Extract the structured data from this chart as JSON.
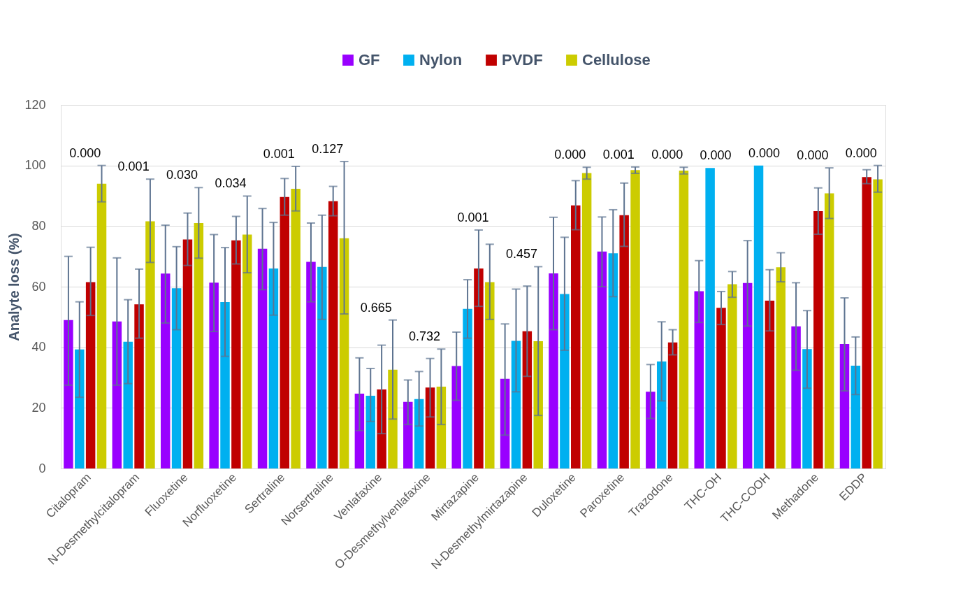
{
  "chart_data": {
    "type": "bar",
    "ylabel": "Analyte loss (%)",
    "legend": "top",
    "grid": "y",
    "categories": [
      "Citalopram",
      "N-Desmethylcitalopram",
      "Fluoxetine",
      "Norfluoxetine",
      "Sertraline",
      "Norsertraline",
      "Venlafaxine",
      "O-Desmethylvenlafaxine",
      "Mirtazapine",
      "N-Desmethylmirtazapine",
      "Duloxetine",
      "Paroxetine",
      "Trazodone",
      "THC-OH",
      "THC-COOH",
      "Methadone",
      "EDDP"
    ],
    "ylim": [
      0,
      120
    ],
    "yticks": [
      0,
      20,
      40,
      60,
      80,
      100,
      120
    ],
    "series": [
      {
        "name": "GF",
        "color": "#9900ff",
        "values": [
          49,
          48.5,
          64.3,
          61.3,
          72.5,
          68.2,
          24.7,
          22,
          33.8,
          29.6,
          64.4,
          71.6,
          25.3,
          58.5,
          61.2,
          46.9,
          41.1
        ],
        "errors": [
          [
            27.5,
            70
          ],
          [
            27.5,
            69.5
          ],
          [
            48,
            80.3
          ],
          [
            45.2,
            77.2
          ],
          [
            59,
            85.8
          ],
          [
            55,
            81
          ],
          [
            12.5,
            36.5
          ],
          [
            14.5,
            29.2
          ],
          [
            22.5,
            45
          ],
          [
            11,
            47.7
          ],
          [
            45.8,
            82.9
          ],
          [
            60,
            83
          ],
          [
            16.5,
            34.3
          ],
          [
            48.2,
            68.6
          ],
          [
            47,
            75.2
          ],
          [
            32.4,
            61.3
          ],
          [
            25.6,
            56.3
          ]
        ]
      },
      {
        "name": "Nylon",
        "color": "#00b0f0",
        "values": [
          39.3,
          41.8,
          59.5,
          54.9,
          66,
          66.5,
          24,
          22.9,
          52.7,
          42.1,
          57.6,
          71,
          35.3,
          99.2,
          100,
          39.4,
          33.9
        ],
        "errors": [
          [
            23.5,
            55
          ],
          [
            28,
            55.7
          ],
          [
            45.8,
            73.2
          ],
          [
            37,
            72.9
          ],
          [
            50.6,
            81.2
          ],
          [
            49.2,
            83.6
          ],
          [
            15.5,
            33
          ],
          [
            14,
            32
          ],
          [
            43,
            62.3
          ],
          [
            25.3,
            59.2
          ],
          [
            39,
            76.3
          ],
          [
            56.7,
            85.4
          ],
          [
            22.3,
            48.4
          ],
          null,
          null,
          [
            26.5,
            52.1
          ],
          [
            24.4,
            43.4
          ]
        ]
      },
      {
        "name": "PVDF",
        "color": "#c00000",
        "values": [
          61.5,
          54.2,
          75.6,
          75.3,
          89.6,
          88.2,
          26.1,
          26.7,
          66,
          45.3,
          86.8,
          83.6,
          41.6,
          53,
          55.4,
          84.9,
          96.2
        ],
        "errors": [
          [
            50.5,
            73
          ],
          [
            43,
            65.8
          ],
          [
            67,
            84.3
          ],
          [
            67.5,
            83.2
          ],
          [
            83.6,
            95.7
          ],
          [
            83.4,
            93.1
          ],
          [
            11.5,
            40.7
          ],
          [
            17,
            36.3
          ],
          [
            53.5,
            78.7
          ],
          [
            30.4,
            60.2
          ],
          [
            78.8,
            95
          ],
          [
            73.3,
            94.2
          ],
          [
            37.5,
            45.8
          ],
          [
            47.5,
            58.4
          ],
          [
            45.4,
            65.6
          ],
          [
            77.3,
            92.6
          ],
          [
            94,
            98.6
          ]
        ]
      },
      {
        "name": "Cellulose",
        "color": "#cccc00",
        "values": [
          94,
          81.6,
          81,
          77.2,
          92.3,
          76,
          32.6,
          27,
          61.5,
          42,
          97.5,
          98.5,
          98.3,
          60.8,
          66.4,
          90.8,
          95.4
        ],
        "errors": [
          [
            88,
            100
          ],
          [
            68,
            95.5
          ],
          [
            69.4,
            92.7
          ],
          [
            64.6,
            89.9
          ],
          [
            85,
            99.7
          ],
          [
            51,
            101.3
          ],
          [
            16.3,
            49
          ],
          [
            14.5,
            39.4
          ],
          [
            49.2,
            74
          ],
          [
            17.5,
            66.6
          ],
          [
            95.5,
            99.4
          ],
          [
            97.4,
            99.5
          ],
          [
            97.2,
            99.4
          ],
          [
            56.5,
            65
          ],
          [
            61.6,
            71.2
          ],
          [
            82.5,
            99.2
          ],
          [
            91.2,
            100
          ]
        ]
      }
    ],
    "annotations": [
      "0.000",
      "0.001",
      "0.030",
      "0.034",
      "0.001",
      "0.127",
      "0.665",
      "0.732",
      "0.001",
      "0.457",
      "0.000",
      "0.001",
      "0.000",
      "0.000",
      "0.000",
      "0.000",
      "0.000"
    ]
  }
}
